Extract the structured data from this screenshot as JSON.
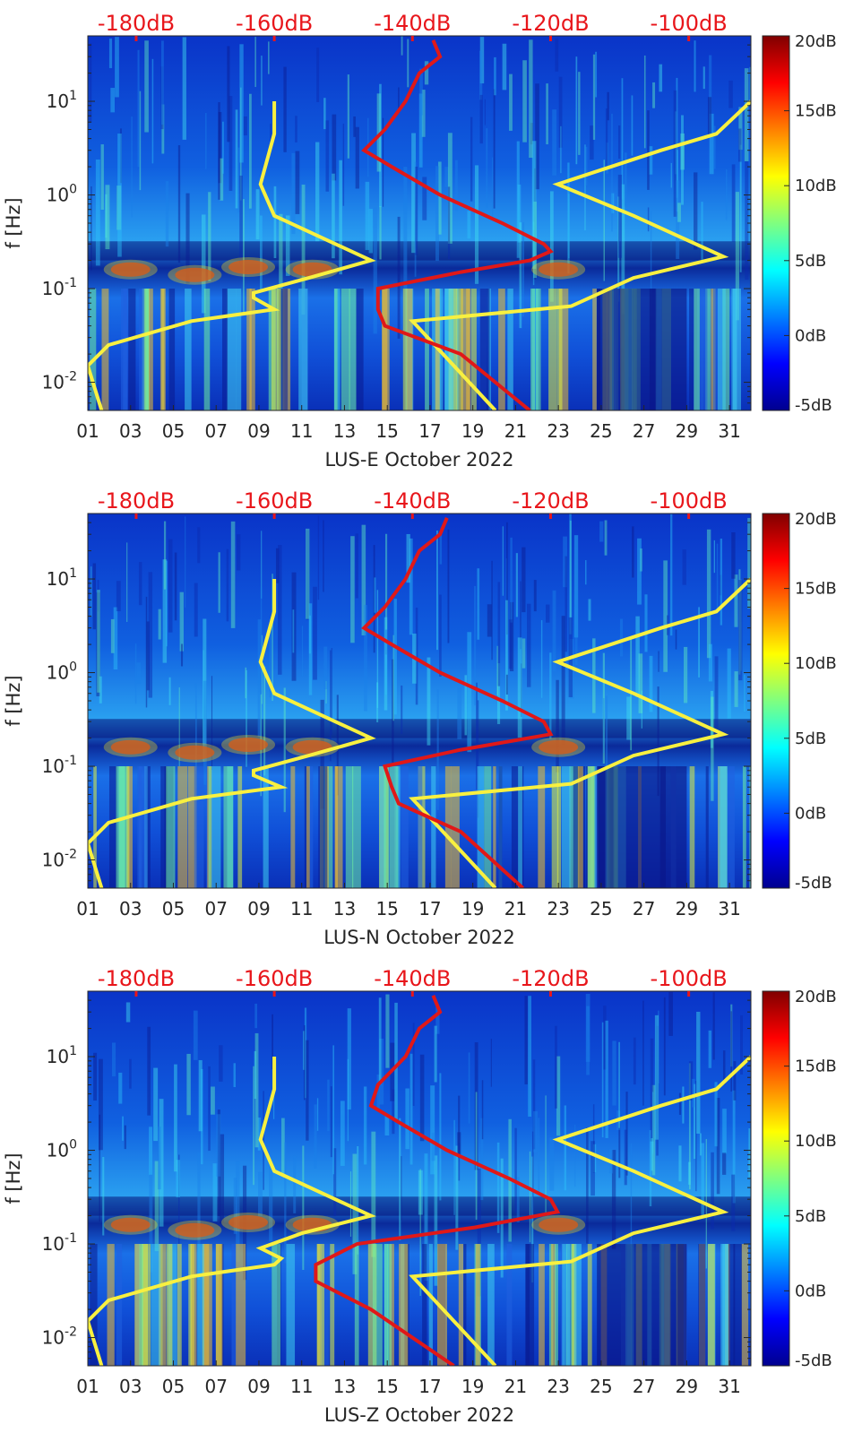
{
  "chart_data": [
    {
      "type": "heatmap",
      "xlabel": "LUS-E October 2022",
      "ylabel": "f [Hz]",
      "x_ticks": [
        "01",
        "03",
        "05",
        "07",
        "09",
        "11",
        "13",
        "15",
        "17",
        "19",
        "21",
        "23",
        "25",
        "27",
        "29",
        "31"
      ],
      "y_ticks": [
        {
          "value": 0.01,
          "base": "10",
          "exp": "-2"
        },
        {
          "value": 0.1,
          "base": "10",
          "exp": "-1"
        },
        {
          "value": 1,
          "base": "10",
          "exp": "0"
        },
        {
          "value": 10,
          "base": "10",
          "exp": "1"
        }
      ],
      "ylim": [
        0.005,
        50
      ],
      "xlim": [
        1,
        32
      ],
      "y_scale": "log",
      "top_axis_labels": [
        "-180dB",
        "-160dB",
        "-140dB",
        "-120dB",
        "-100dB"
      ],
      "top_axis_values": [
        -180,
        -160,
        -140,
        -120,
        -100
      ],
      "top_axis_range": [
        -187,
        -91
      ],
      "colorbar": {
        "labels": [
          "20dB",
          "15dB",
          "10dB",
          "5dB",
          "0dB",
          "-5dB"
        ],
        "range": [
          -5,
          20
        ]
      },
      "yellow_curve_low": [
        [
          10,
          -160
        ],
        [
          4.5,
          -160
        ],
        [
          1.3,
          -162
        ],
        [
          0.6,
          -160
        ],
        [
          0.2,
          -146
        ],
        [
          0.13,
          -155
        ],
        [
          0.09,
          -163
        ],
        [
          0.08,
          -163
        ],
        [
          0.06,
          -160
        ],
        [
          0.045,
          -172
        ],
        [
          0.025,
          -184
        ],
        [
          0.015,
          -187
        ],
        [
          0.005,
          -185
        ]
      ],
      "yellow_curve_high": [
        [
          10,
          -91
        ],
        [
          4.5,
          -96
        ],
        [
          3,
          -104
        ],
        [
          1.3,
          -119
        ],
        [
          0.6,
          -108
        ],
        [
          0.22,
          -95
        ],
        [
          0.13,
          -108
        ],
        [
          0.065,
          -117
        ],
        [
          0.045,
          -140
        ],
        [
          0.005,
          -128
        ]
      ],
      "red_curve": [
        [
          45,
          -137
        ],
        [
          30,
          -136
        ],
        [
          20,
          -139
        ],
        [
          10,
          -141
        ],
        [
          5,
          -144
        ],
        [
          3,
          -147
        ],
        [
          2,
          -143
        ],
        [
          1,
          -136
        ],
        [
          0.5,
          -127
        ],
        [
          0.3,
          -121
        ],
        [
          0.25,
          -120
        ],
        [
          0.2,
          -123
        ],
        [
          0.15,
          -133
        ],
        [
          0.1,
          -145
        ],
        [
          0.06,
          -145
        ],
        [
          0.04,
          -144
        ],
        [
          0.02,
          -133
        ],
        [
          0.005,
          -123
        ]
      ]
    },
    {
      "type": "heatmap",
      "xlabel": "LUS-N October 2022",
      "ylabel": "f [Hz]",
      "x_ticks": [
        "01",
        "03",
        "05",
        "07",
        "09",
        "11",
        "13",
        "15",
        "17",
        "19",
        "21",
        "23",
        "25",
        "27",
        "29",
        "31"
      ],
      "y_ticks": [
        {
          "value": 0.01,
          "base": "10",
          "exp": "-2"
        },
        {
          "value": 0.1,
          "base": "10",
          "exp": "-1"
        },
        {
          "value": 1,
          "base": "10",
          "exp": "0"
        },
        {
          "value": 10,
          "base": "10",
          "exp": "1"
        }
      ],
      "ylim": [
        0.005,
        50
      ],
      "xlim": [
        1,
        32
      ],
      "y_scale": "log",
      "top_axis_labels": [
        "-180dB",
        "-160dB",
        "-140dB",
        "-120dB",
        "-100dB"
      ],
      "top_axis_values": [
        -180,
        -160,
        -140,
        -120,
        -100
      ],
      "top_axis_range": [
        -187,
        -91
      ],
      "colorbar": {
        "labels": [
          "20dB",
          "15dB",
          "10dB",
          "5dB",
          "0dB",
          "-5dB"
        ],
        "range": [
          -5,
          20
        ]
      },
      "yellow_curve_low": [
        [
          10,
          -160
        ],
        [
          4.5,
          -160
        ],
        [
          1.3,
          -162
        ],
        [
          0.6,
          -160
        ],
        [
          0.2,
          -146
        ],
        [
          0.13,
          -155
        ],
        [
          0.09,
          -163
        ],
        [
          0.08,
          -163
        ],
        [
          0.06,
          -159
        ],
        [
          0.045,
          -172
        ],
        [
          0.025,
          -184
        ],
        [
          0.015,
          -187
        ],
        [
          0.005,
          -185
        ]
      ],
      "yellow_curve_high": [
        [
          10,
          -91
        ],
        [
          4.5,
          -96
        ],
        [
          3,
          -104
        ],
        [
          1.3,
          -119
        ],
        [
          0.6,
          -108
        ],
        [
          0.22,
          -95
        ],
        [
          0.13,
          -108
        ],
        [
          0.065,
          -117
        ],
        [
          0.045,
          -140
        ],
        [
          0.005,
          -128
        ]
      ],
      "red_curve": [
        [
          45,
          -135
        ],
        [
          30,
          -136
        ],
        [
          20,
          -139
        ],
        [
          10,
          -141
        ],
        [
          5,
          -144
        ],
        [
          3,
          -147
        ],
        [
          2,
          -143
        ],
        [
          1,
          -136
        ],
        [
          0.5,
          -127
        ],
        [
          0.3,
          -121
        ],
        [
          0.22,
          -120
        ],
        [
          0.15,
          -133
        ],
        [
          0.1,
          -144
        ],
        [
          0.06,
          -143
        ],
        [
          0.04,
          -142
        ],
        [
          0.02,
          -133
        ],
        [
          0.005,
          -124
        ]
      ]
    },
    {
      "type": "heatmap",
      "xlabel": "LUS-Z October 2022",
      "ylabel": "f [Hz]",
      "x_ticks": [
        "01",
        "03",
        "05",
        "07",
        "09",
        "11",
        "13",
        "15",
        "17",
        "19",
        "21",
        "23",
        "25",
        "27",
        "29",
        "31"
      ],
      "y_ticks": [
        {
          "value": 0.01,
          "base": "10",
          "exp": "-2"
        },
        {
          "value": 0.1,
          "base": "10",
          "exp": "-1"
        },
        {
          "value": 1,
          "base": "10",
          "exp": "0"
        },
        {
          "value": 10,
          "base": "10",
          "exp": "1"
        }
      ],
      "ylim": [
        0.005,
        50
      ],
      "xlim": [
        1,
        32
      ],
      "y_scale": "log",
      "top_axis_labels": [
        "-180dB",
        "-160dB",
        "-140dB",
        "-120dB",
        "-100dB"
      ],
      "top_axis_values": [
        -180,
        -160,
        -140,
        -120,
        -100
      ],
      "top_axis_range": [
        -187,
        -91
      ],
      "colorbar": {
        "labels": [
          "20dB",
          "15dB",
          "10dB",
          "5dB",
          "0dB",
          "-5dB"
        ],
        "range": [
          -5,
          20
        ]
      },
      "yellow_curve_low": [
        [
          10,
          -160
        ],
        [
          4.5,
          -160
        ],
        [
          1.3,
          -162
        ],
        [
          0.6,
          -160
        ],
        [
          0.2,
          -146
        ],
        [
          0.13,
          -156
        ],
        [
          0.09,
          -162
        ],
        [
          0.07,
          -159
        ],
        [
          0.06,
          -160
        ],
        [
          0.045,
          -172
        ],
        [
          0.025,
          -184
        ],
        [
          0.015,
          -187
        ],
        [
          0.005,
          -185
        ]
      ],
      "yellow_curve_high": [
        [
          10,
          -91
        ],
        [
          4.5,
          -96
        ],
        [
          3,
          -104
        ],
        [
          1.3,
          -119
        ],
        [
          0.6,
          -108
        ],
        [
          0.22,
          -95
        ],
        [
          0.13,
          -108
        ],
        [
          0.065,
          -117
        ],
        [
          0.045,
          -140
        ],
        [
          0.005,
          -128
        ]
      ],
      "red_curve": [
        [
          45,
          -137
        ],
        [
          30,
          -136
        ],
        [
          20,
          -139
        ],
        [
          10,
          -141
        ],
        [
          5,
          -145
        ],
        [
          3,
          -146
        ],
        [
          2,
          -142
        ],
        [
          1,
          -135
        ],
        [
          0.5,
          -126
        ],
        [
          0.3,
          -120
        ],
        [
          0.22,
          -119
        ],
        [
          0.15,
          -131
        ],
        [
          0.1,
          -148
        ],
        [
          0.06,
          -154
        ],
        [
          0.04,
          -154
        ],
        [
          0.02,
          -146
        ],
        [
          0.005,
          -134
        ]
      ]
    }
  ]
}
